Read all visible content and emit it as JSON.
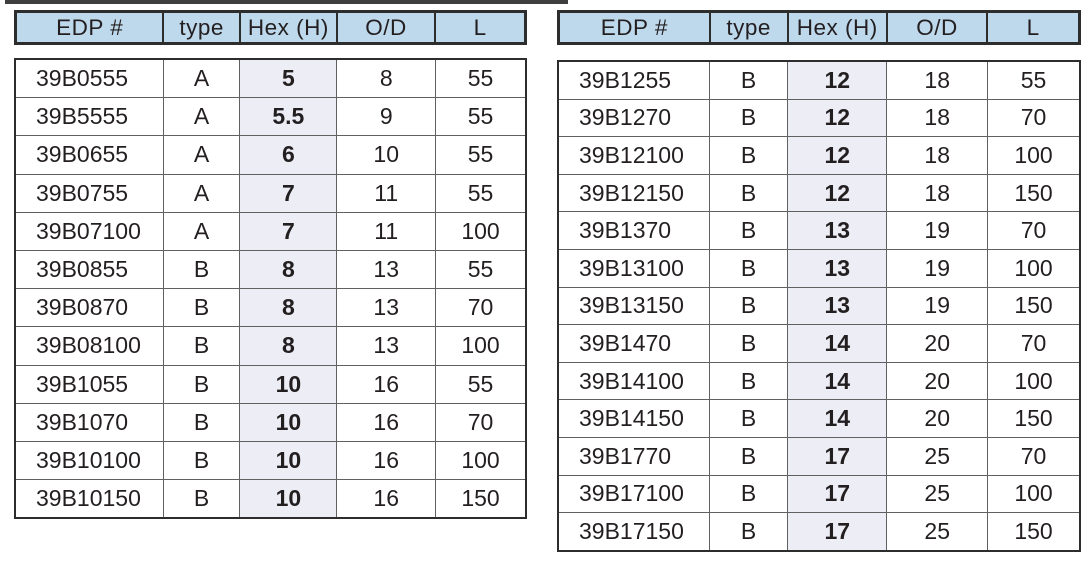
{
  "colors": {
    "header_bg": "#bed8ec",
    "hex_col_bg": "#ededf5",
    "text": "#231f20",
    "border_dark": "#2d2d2d",
    "border_light": "#606060",
    "top_rule": "#3f3f3f"
  },
  "columns": [
    "EDP #",
    "type",
    "Hex (H)",
    "O/D",
    "L"
  ],
  "column_keys": [
    "edp-number",
    "type",
    "hex-h",
    "od",
    "length"
  ],
  "tables": {
    "left": {
      "rows": [
        [
          "39B0555",
          "A",
          "5",
          "8",
          "55"
        ],
        [
          "39B5555",
          "A",
          "5.5",
          "9",
          "55"
        ],
        [
          "39B0655",
          "A",
          "6",
          "10",
          "55"
        ],
        [
          "39B0755",
          "A",
          "7",
          "11",
          "55"
        ],
        [
          "39B07100",
          "A",
          "7",
          "11",
          "100"
        ],
        [
          "39B0855",
          "B",
          "8",
          "13",
          "55"
        ],
        [
          "39B0870",
          "B",
          "8",
          "13",
          "70"
        ],
        [
          "39B08100",
          "B",
          "8",
          "13",
          "100"
        ],
        [
          "39B1055",
          "B",
          "10",
          "16",
          "55"
        ],
        [
          "39B1070",
          "B",
          "10",
          "16",
          "70"
        ],
        [
          "39B10100",
          "B",
          "10",
          "16",
          "100"
        ],
        [
          "39B10150",
          "B",
          "10",
          "16",
          "150"
        ]
      ]
    },
    "right": {
      "rows": [
        [
          "39B1255",
          "B",
          "12",
          "18",
          "55"
        ],
        [
          "39B1270",
          "B",
          "12",
          "18",
          "70"
        ],
        [
          "39B12100",
          "B",
          "12",
          "18",
          "100"
        ],
        [
          "39B12150",
          "B",
          "12",
          "18",
          "150"
        ],
        [
          "39B1370",
          "B",
          "13",
          "19",
          "70"
        ],
        [
          "39B13100",
          "B",
          "13",
          "19",
          "100"
        ],
        [
          "39B13150",
          "B",
          "13",
          "19",
          "150"
        ],
        [
          "39B1470",
          "B",
          "14",
          "20",
          "70"
        ],
        [
          "39B14100",
          "B",
          "14",
          "20",
          "100"
        ],
        [
          "39B14150",
          "B",
          "14",
          "20",
          "150"
        ],
        [
          "39B1770",
          "B",
          "17",
          "25",
          "70"
        ],
        [
          "39B17100",
          "B",
          "17",
          "25",
          "100"
        ],
        [
          "39B17150",
          "B",
          "17",
          "25",
          "150"
        ]
      ]
    }
  }
}
